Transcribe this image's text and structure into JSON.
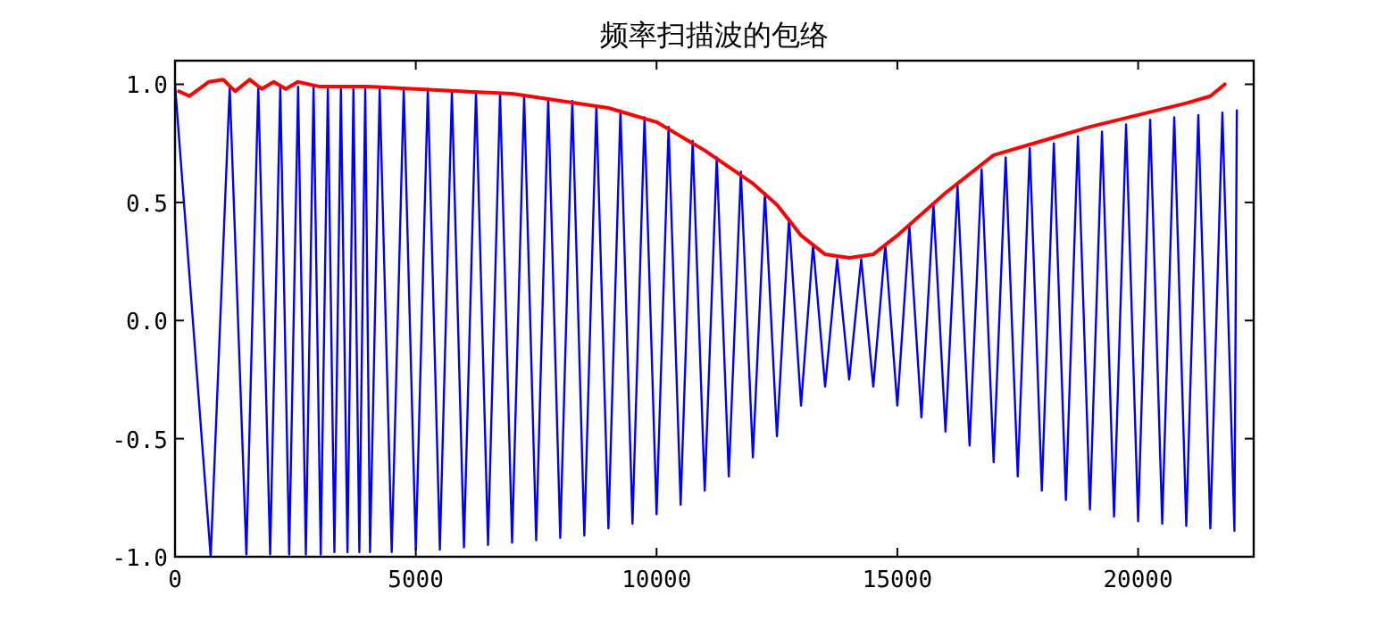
{
  "chart_data": {
    "type": "line",
    "title": "频率扫描波的包络",
    "xlim": [
      0,
      22400
    ],
    "ylim": [
      -1.0,
      1.1
    ],
    "xticks": [
      0,
      5000,
      10000,
      15000,
      20000
    ],
    "yticks": [
      {
        "value": -1.0,
        "label": "-1.0"
      },
      {
        "value": -0.5,
        "label": "-0.5"
      },
      {
        "value": 0,
        "label": "0.0"
      },
      {
        "value": 0.5,
        "label": "0.5"
      },
      {
        "value": 1.0,
        "label": "1.0"
      }
    ],
    "grid": false,
    "marker": "none",
    "line_style": "solid",
    "series": [
      {
        "color": "#0000ff",
        "x": [
          0,
          741,
          1136,
          1482,
          1729,
          1976,
          2186,
          2371,
          2556,
          2717,
          2877,
          3026,
          3174,
          3310,
          3445,
          3581,
          3705,
          3828,
          3950,
          4050,
          4250,
          4500,
          4750,
          5000,
          5250,
          5500,
          5750,
          6000,
          6250,
          6500,
          6750,
          7000,
          7250,
          7500,
          7750,
          8000,
          8250,
          8500,
          8750,
          9000,
          9250,
          9500,
          9750,
          10000,
          10250,
          10500,
          10750,
          11000,
          11250,
          11500,
          11750,
          12000,
          12250,
          12500,
          12750,
          13000,
          13250,
          13500,
          13750,
          14000,
          14250,
          14500,
          14750,
          15000,
          15250,
          15500,
          15750,
          16000,
          16250,
          16500,
          16750,
          17000,
          17250,
          17500,
          17750,
          18000,
          18250,
          18500,
          18750,
          19000,
          19250,
          19500,
          19750,
          20000,
          20250,
          20500,
          20750,
          21000,
          21250,
          21500,
          21750,
          22000,
          22050
        ],
        "values": [
          1.0,
          -1.0,
          0.99,
          -0.99,
          0.99,
          -0.99,
          0.99,
          -0.99,
          0.99,
          -0.99,
          0.99,
          -0.99,
          0.99,
          -0.98,
          0.98,
          -0.98,
          0.98,
          -0.98,
          0.98,
          -0.98,
          0.98,
          -0.98,
          0.98,
          -0.97,
          0.98,
          -0.97,
          0.97,
          -0.96,
          0.97,
          -0.95,
          0.96,
          -0.94,
          0.95,
          -0.93,
          0.94,
          -0.92,
          0.93,
          -0.91,
          0.91,
          -0.88,
          0.89,
          -0.86,
          0.86,
          -0.82,
          0.82,
          -0.78,
          0.76,
          -0.72,
          0.69,
          -0.66,
          0.63,
          -0.58,
          0.54,
          -0.49,
          0.43,
          -0.36,
          0.32,
          -0.28,
          0.26,
          -0.25,
          0.26,
          -0.28,
          0.32,
          -0.36,
          0.4,
          -0.41,
          0.49,
          -0.47,
          0.57,
          -0.53,
          0.64,
          -0.6,
          0.69,
          -0.66,
          0.73,
          -0.72,
          0.75,
          -0.76,
          0.78,
          -0.8,
          0.8,
          -0.83,
          0.83,
          -0.85,
          0.85,
          -0.86,
          0.86,
          -0.87,
          0.87,
          -0.88,
          0.88,
          -0.89,
          0.89
        ]
      },
      {
        "color": "#ff0000",
        "x": [
          80,
          300,
          700,
          1000,
          1250,
          1550,
          1800,
          2050,
          2300,
          2550,
          3000,
          4000,
          5000,
          6000,
          7000,
          8000,
          9000,
          10000,
          11000,
          12000,
          12500,
          13000,
          13500,
          14000,
          14500,
          15000,
          16000,
          17000,
          18000,
          19000,
          20000,
          21000,
          21500,
          21800
        ],
        "values": [
          0.97,
          0.95,
          1.01,
          1.02,
          0.97,
          1.02,
          0.98,
          1.01,
          0.98,
          1.01,
          0.99,
          0.99,
          0.98,
          0.97,
          0.96,
          0.93,
          0.9,
          0.84,
          0.72,
          0.58,
          0.49,
          0.36,
          0.28,
          0.265,
          0.28,
          0.36,
          0.54,
          0.7,
          0.76,
          0.82,
          0.87,
          0.92,
          0.95,
          1.0
        ]
      }
    ]
  }
}
